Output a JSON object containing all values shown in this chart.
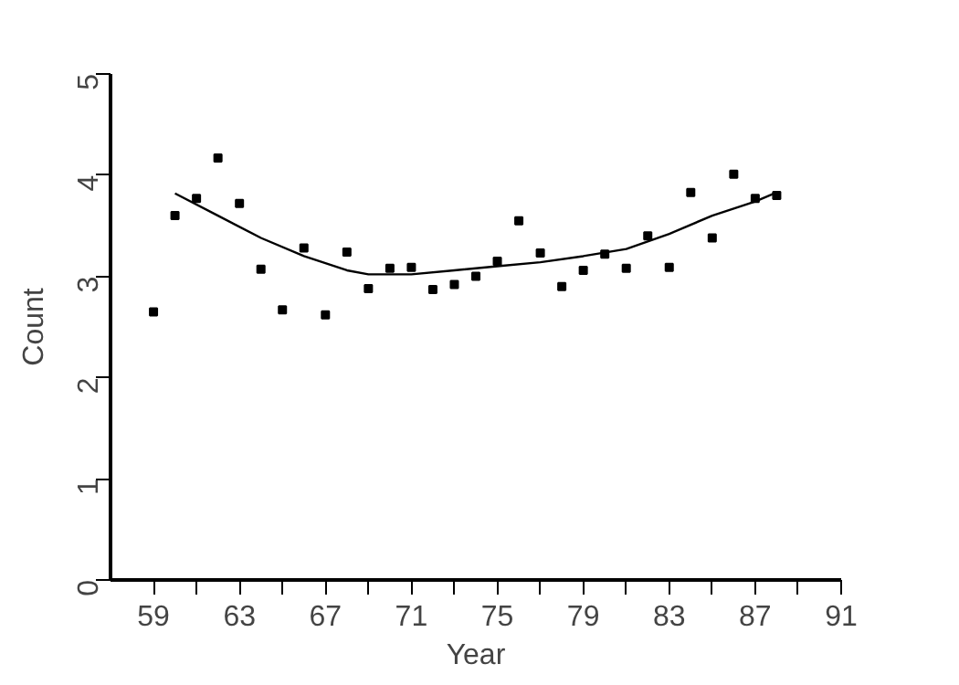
{
  "chart_data": {
    "type": "scatter",
    "xlabel": "Year",
    "ylabel": "Count",
    "xlim": [
      57,
      91
    ],
    "ylim": [
      0,
      5
    ],
    "xticks": [
      59,
      {
        "value": 61,
        "label": null
      },
      63,
      {
        "value": 65,
        "label": null
      },
      67,
      {
        "value": 69,
        "label": null
      },
      71,
      {
        "value": 73,
        "label": null
      },
      75,
      {
        "value": 77,
        "label": null
      },
      79,
      {
        "value": 81,
        "label": null
      },
      83,
      {
        "value": 85,
        "label": null
      },
      87,
      {
        "value": 89,
        "label": null
      },
      91
    ],
    "yticks": [
      0,
      1,
      2,
      3,
      4,
      5
    ],
    "series": [
      {
        "marker": "square",
        "color": "#000000",
        "x": [
          59,
          60,
          61,
          62,
          63,
          64,
          65,
          66,
          67,
          68,
          69,
          70,
          71,
          72,
          73,
          74,
          75,
          76,
          77,
          78,
          79,
          80,
          81,
          82,
          83,
          84,
          85,
          86,
          87,
          88
        ],
        "values": [
          2.65,
          3.6,
          3.77,
          4.17,
          3.72,
          3.07,
          2.67,
          3.28,
          2.62,
          3.24,
          2.88,
          3.08,
          3.09,
          2.87,
          2.92,
          3.0,
          3.15,
          3.55,
          3.23,
          2.9,
          3.06,
          3.22,
          3.08,
          3.4,
          3.09,
          3.83,
          3.38,
          4.01,
          3.77,
          3.8
        ]
      },
      {
        "type": "line",
        "color": "#000000",
        "x": [
          60,
          62,
          64,
          66,
          68,
          69,
          71,
          73,
          75,
          77,
          79,
          81,
          83,
          85,
          87,
          88
        ],
        "values": [
          3.82,
          3.6,
          3.38,
          3.2,
          3.06,
          3.02,
          3.02,
          3.06,
          3.1,
          3.14,
          3.2,
          3.27,
          3.42,
          3.6,
          3.74,
          3.83
        ]
      }
    ]
  }
}
